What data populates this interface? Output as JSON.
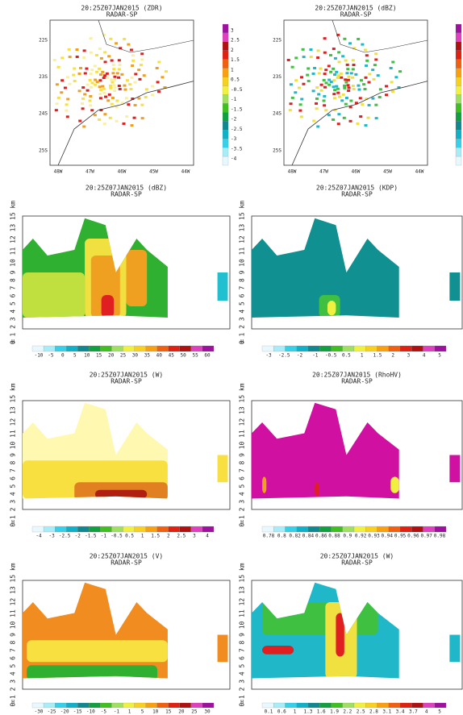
{
  "panels": [
    {
      "title": "20:25Z07JAN2015 (ZDR)",
      "subtitle": "RADAR-SP",
      "lat_labels": [
        "22S",
        "23S",
        "24S",
        "25S"
      ],
      "lon_labels": [
        "48W",
        "47W",
        "46W",
        "45W",
        "44W"
      ],
      "colorbar_labels": [
        "3",
        "2.5",
        "2",
        "1.5",
        "1",
        "0.5",
        "-0.5",
        "-1",
        "-1.5",
        "-2",
        "-2.5",
        "-3",
        "-3.5",
        "-4"
      ]
    },
    {
      "title": "20:25Z07JAN2015 (dBZ)",
      "subtitle": "RADAR-SP",
      "lat_labels": [
        "22S",
        "23S",
        "24S",
        "25S"
      ],
      "lon_labels": [
        "48W",
        "47W",
        "46W",
        "45W",
        "44W"
      ]
    },
    {
      "title": "20:25Z07JAN2015 (dBZ)",
      "subtitle": "RADAR-SP",
      "y_axis_label": "0 1 2 3 4 5 6 7 8 9 10 11 12 13 15 km",
      "x_axis_label": "H",
      "colorbar_labels": [
        "-10",
        "-5",
        "0",
        "5",
        "10",
        "15",
        "20",
        "25",
        "30",
        "35",
        "40",
        "45",
        "50",
        "55",
        "60"
      ]
    },
    {
      "title": "20:25Z07JAN2015 (KDP)",
      "subtitle": "RADAR-SP",
      "y_axis_label": "0 1 2 3 4 5 6 7 8 9 10 11 12 13 15 km",
      "x_axis_label": "H",
      "colorbar_labels": [
        "-3",
        "-2.5",
        "-2",
        "-1",
        "-0.5",
        "0.5",
        "1",
        "1.5",
        "2",
        "3",
        "4",
        "5"
      ]
    },
    {
      "title": "20:25Z07JAN2015 (W)",
      "subtitle": "RADAR-SP",
      "y_axis_label": "0 1 2 3 4 5 6 7 8 9 10 11 12 13 15 km",
      "x_axis_label": "H",
      "colorbar_labels": [
        "-4",
        "-3",
        "-2.5",
        "-2",
        "-1.5",
        "-1",
        "-0.5",
        "0.5",
        "1",
        "1.5",
        "2",
        "2.5",
        "3",
        "4"
      ]
    },
    {
      "title": "20:25Z07JAN2015 (RhoHV)",
      "subtitle": "RADAR-SP",
      "y_axis_label": "0 1 2 3 4 5 6 7 8 9 10 11 12 13 15 km",
      "x_axis_label": "H",
      "colorbar_labels": [
        "0.78",
        "0.8",
        "0.82",
        "0.84",
        "0.86",
        "0.88",
        "0.9",
        "0.92",
        "0.93",
        "0.94",
        "0.95",
        "0.96",
        "0.97",
        "0.98"
      ]
    },
    {
      "title": "20:25Z07JAN2015 (V)",
      "subtitle": "RADAR-SP",
      "y_axis_label": "0 1 2 3 4 5 6 7 8 9 10 11 12 13 15 km",
      "x_axis_label": "H",
      "colorbar_labels": [
        "-30",
        "-25",
        "-20",
        "-15",
        "-10",
        "-5",
        "-1",
        "1",
        "5",
        "10",
        "15",
        "20",
        "25",
        "30"
      ]
    },
    {
      "title": "20:25Z07JAN2015 (W)",
      "subtitle": "RADAR-SP",
      "y_axis_label": "0 1 2 3 4 5 6 7 8 9 10 11 12 13 15 km",
      "x_axis_label": "H",
      "colorbar_labels": [
        "0.1",
        "0.6",
        "1",
        "1.3",
        "1.6",
        "1.9",
        "2.2",
        "2.5",
        "2.8",
        "3.1",
        "3.4",
        "3.7",
        "4",
        "5"
      ]
    }
  ]
}
